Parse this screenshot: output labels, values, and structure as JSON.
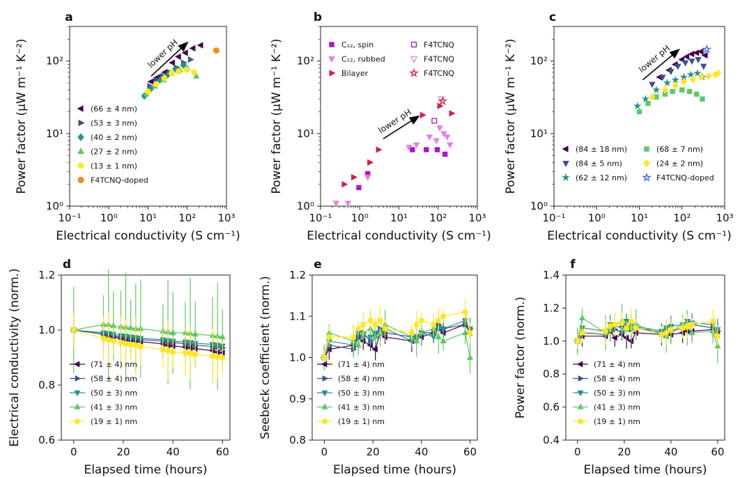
{
  "colors": {
    "purple": "#440154",
    "indigo": "#3b528b",
    "teal": "#21918c",
    "green": "#5ec962",
    "yellow": "#fde725",
    "orange": "#f28e1c",
    "magenta": "#b00fd0",
    "pink": "#e481e8",
    "crimson": "#d2204a",
    "blue_open": "#4169e1"
  },
  "chart_data": [
    {
      "id": "a",
      "panel_label": "a",
      "type": "scatter",
      "xlabel": "Electrical conductivity (S cm⁻¹)",
      "ylabel": "Power factor (μW m⁻¹ K⁻²)",
      "xscale": "log",
      "yscale": "log",
      "xlim": [
        0.1,
        1000
      ],
      "ylim": [
        1,
        300
      ],
      "xticks": [
        0.1,
        1,
        10,
        100,
        1000
      ],
      "xticklabels": [
        "10⁻¹",
        "10⁰",
        "10¹",
        "10²",
        "10³"
      ],
      "yticks": [
        1,
        10,
        100
      ],
      "yticklabels": [
        "10⁰",
        "10¹",
        "10²"
      ],
      "annotation": {
        "text": "lower pH",
        "from": [
          12,
          62
        ],
        "to": [
          95,
          175
        ]
      },
      "legend": "center-left",
      "series": [
        {
          "name": "(66 ± 4 nm)",
          "marker": "tri-left",
          "color": "#440154",
          "x": [
            12,
            18,
            27,
            42,
            60,
            90,
            140,
            220
          ],
          "y": [
            52,
            60,
            70,
            95,
            115,
            130,
            150,
            165
          ]
        },
        {
          "name": "(53 ± 3 nm)",
          "marker": "tri-right",
          "color": "#3b528b",
          "x": [
            11,
            16,
            24,
            35,
            52,
            80,
            120
          ],
          "y": [
            45,
            55,
            62,
            70,
            82,
            95,
            105
          ]
        },
        {
          "name": "(40 ± 2 nm)",
          "marker": "diamond",
          "color": "#21918c",
          "x": [
            8,
            12,
            20,
            32,
            50,
            80
          ],
          "y": [
            33,
            42,
            55,
            65,
            78,
            88
          ]
        },
        {
          "name": "(27 ± 2 nm)",
          "marker": "tri-up",
          "color": "#5ec962",
          "x": [
            9,
            15,
            25,
            40,
            65,
            100,
            170
          ],
          "y": [
            35,
            45,
            55,
            68,
            75,
            80,
            62
          ]
        },
        {
          "name": "(13 ± 1 nm)",
          "marker": "octagon",
          "color": "#fde725",
          "x": [
            10,
            16,
            26,
            40,
            60,
            95,
            150
          ],
          "y": [
            38,
            48,
            58,
            68,
            72,
            76,
            70
          ]
        },
        {
          "name": "F4TCNQ-doped",
          "marker": "circle",
          "color": "#f28e1c",
          "x": [
            550
          ],
          "y": [
            140
          ]
        }
      ]
    },
    {
      "id": "b",
      "panel_label": "b",
      "type": "scatter",
      "xlabel": "Electrical conductivity (S cm⁻¹)",
      "ylabel": "Power factor (μW m⁻¹ K⁻²)",
      "xscale": "log",
      "yscale": "log",
      "xlim": [
        0.1,
        1000
      ],
      "ylim": [
        1,
        300
      ],
      "xticks": [
        0.1,
        1,
        10,
        100,
        1000
      ],
      "xticklabels": [
        "10⁻¹",
        "10⁰",
        "10¹",
        "10²",
        "10³"
      ],
      "yticks": [
        1,
        10,
        100
      ],
      "yticklabels": [
        "10⁰",
        "10¹",
        "10²"
      ],
      "annotation": {
        "text": "lower pH",
        "from": [
          4,
          8.5
        ],
        "to": [
          30,
          17
        ]
      },
      "legend": "top",
      "series": [
        {
          "name": "C₁₂, spin",
          "marker": "square",
          "color": "#b00fd0",
          "x": [
            0.95,
            1.6,
            22,
            50,
            95,
            150
          ],
          "y": [
            1.8,
            2.8,
            6,
            6,
            6,
            5.2
          ]
        },
        {
          "name": "C₁₂, rubbed",
          "marker": "tri-down",
          "color": "#e481e8",
          "x": [
            0.25,
            0.5,
            1.6,
            18,
            28,
            60,
            90,
            110,
            140,
            170,
            200
          ],
          "y": [
            1.1,
            1.1,
            2.5,
            6.5,
            7,
            9,
            8,
            12,
            10,
            9,
            7
          ]
        },
        {
          "name": "Bilayer",
          "marker": "tri-right",
          "color": "#d2204a",
          "x": [
            0.4,
            0.7,
            1.8,
            3,
            40,
            110,
            220
          ],
          "y": [
            2.0,
            2.5,
            4,
            6,
            18,
            24,
            19
          ]
        },
        {
          "name": "F4TCNQ",
          "marker": "square-open",
          "color": "#b00fd0",
          "x": [
            80
          ],
          "y": [
            15
          ]
        },
        {
          "name": "F4TCNQ",
          "marker": "tri-down-open",
          "color": "#e481e8",
          "x": [
            120
          ],
          "y": [
            30
          ]
        },
        {
          "name": "F4TCNQ",
          "marker": "star-open",
          "color": "#d2204a",
          "x": [
            130
          ],
          "y": [
            28
          ]
        }
      ]
    },
    {
      "id": "c",
      "panel_label": "c",
      "type": "scatter",
      "xlabel": "Electrical conductivity (S cm⁻¹)",
      "ylabel": "Power factor (μW m⁻¹ K⁻²)",
      "xscale": "log",
      "yscale": "log",
      "xlim": [
        0.1,
        1000
      ],
      "ylim": [
        1,
        300
      ],
      "xticks": [
        0.1,
        1,
        10,
        100,
        1000
      ],
      "xticklabels": [
        "10⁻¹",
        "10⁰",
        "10¹",
        "10²",
        "10³"
      ],
      "yticks": [
        1,
        10,
        100
      ],
      "yticklabels": [
        "10⁰",
        "10¹",
        "10²"
      ],
      "annotation": {
        "text": "lower pH",
        "from": [
          12,
          55
        ],
        "to": [
          80,
          140
        ]
      },
      "legend": "bottom",
      "series": [
        {
          "name": "(84 ± 18 nm)",
          "marker": "tri-left",
          "color": "#440154",
          "x": [
            30,
            50,
            70,
            100,
            130,
            170,
            220,
            280,
            350
          ],
          "y": [
            60,
            75,
            90,
            105,
            115,
            125,
            130,
            135,
            120
          ]
        },
        {
          "name": "(84 ± 5 nm)",
          "marker": "tri-down",
          "color": "#3b528b",
          "x": [
            20,
            35,
            55,
            80,
            120,
            170,
            240,
            320
          ],
          "y": [
            48,
            60,
            72,
            85,
            95,
            100,
            105,
            85
          ]
        },
        {
          "name": "(62 ± 12 nm)",
          "marker": "star",
          "color": "#21918c",
          "x": [
            9,
            14,
            25,
            45,
            70,
            110,
            160,
            230,
            300
          ],
          "y": [
            24,
            30,
            40,
            50,
            55,
            60,
            65,
            68,
            60
          ]
        },
        {
          "name": "(68 ± 7 nm)",
          "marker": "square",
          "color": "#5ec962",
          "x": [
            10,
            16,
            25,
            40,
            60,
            100,
            150,
            220,
            300
          ],
          "y": [
            20,
            26,
            32,
            35,
            38,
            40,
            38,
            35,
            30
          ]
        },
        {
          "name": "(24 ± 2 nm)",
          "marker": "diamond",
          "color": "#fde725",
          "x": [
            20,
            40,
            70,
            110,
            180,
            280,
            420,
            600,
            700
          ],
          "y": [
            32,
            40,
            46,
            52,
            56,
            60,
            62,
            65,
            68
          ]
        },
        {
          "name": "F4TCNQ-doped",
          "marker": "star-open",
          "color": "#4169e1",
          "x": [
            380
          ],
          "y": [
            145
          ]
        }
      ]
    },
    {
      "id": "d",
      "panel_label": "d",
      "type": "line",
      "xlabel": "Elapsed time (hours)",
      "ylabel": "Electrical conductivity (norm.)",
      "xlim": [
        -5,
        63
      ],
      "ylim": [
        0.6,
        1.2
      ],
      "xticks": [
        0,
        20,
        40,
        60
      ],
      "yticks": [
        0.6,
        0.8,
        1.0,
        1.2
      ],
      "yticklabels": [
        "0.6",
        "0.8",
        "1.0",
        "1.2"
      ],
      "legend": "bottom-left",
      "x": [
        0,
        12,
        14,
        16,
        19,
        21,
        23,
        25,
        27,
        36,
        38,
        40,
        45,
        47,
        49,
        56,
        58,
        60
      ],
      "series": [
        {
          "name": "(71 ± 4) nm",
          "marker": "tri-left",
          "color": "#440154",
          "err": 0.03,
          "values": [
            1.0,
            0.985,
            0.98,
            0.975,
            0.97,
            0.965,
            0.962,
            0.96,
            0.958,
            0.95,
            0.945,
            0.942,
            0.938,
            0.935,
            0.933,
            0.925,
            0.92,
            0.918
          ]
        },
        {
          "name": "(58 ± 4) nm",
          "marker": "tri-right",
          "color": "#3b528b",
          "err": 0.03,
          "values": [
            1.0,
            0.985,
            0.98,
            0.978,
            0.975,
            0.972,
            0.97,
            0.968,
            0.965,
            0.96,
            0.957,
            0.955,
            0.95,
            0.948,
            0.945,
            0.94,
            0.938,
            0.935
          ]
        },
        {
          "name": "(50 ± 3) nm",
          "marker": "tri-down",
          "color": "#21918c",
          "err": 0.03,
          "values": [
            1.0,
            0.99,
            0.988,
            0.985,
            0.98,
            0.978,
            0.975,
            0.973,
            0.97,
            0.965,
            0.962,
            0.96,
            0.957,
            0.955,
            0.952,
            0.948,
            0.945,
            0.942
          ]
        },
        {
          "name": "(41 ± 3) nm",
          "marker": "tri-up",
          "color": "#5ec962",
          "err": 0.15,
          "values": [
            1.0,
            1.02,
            1.02,
            1.015,
            1.012,
            1.01,
            1.008,
            1.005,
            1.005,
            0.995,
            0.993,
            0.99,
            0.99,
            0.988,
            0.985,
            0.98,
            0.978,
            0.975
          ]
        },
        {
          "name": "(19 ± 1) nm",
          "marker": "square",
          "color": "#fde725",
          "err": 0.08,
          "values": [
            1.0,
            0.97,
            0.965,
            0.96,
            0.955,
            0.95,
            0.948,
            0.945,
            0.94,
            0.93,
            0.925,
            0.92,
            0.918,
            0.915,
            0.912,
            0.905,
            0.902,
            0.9
          ]
        }
      ]
    },
    {
      "id": "e",
      "panel_label": "e",
      "type": "line",
      "xlabel": "Elapsed time (hours)",
      "ylabel": "Seebeck coefficient (norm.)",
      "xlim": [
        -5,
        63
      ],
      "ylim": [
        0.8,
        1.2
      ],
      "xticks": [
        0,
        20,
        40,
        60
      ],
      "yticks": [
        0.8,
        0.9,
        1.0,
        1.1,
        1.2
      ],
      "yticklabels": [
        "0.8",
        "0.9",
        "1.0",
        "1.1",
        "1.2"
      ],
      "legend": "bottom-left",
      "x": [
        0,
        2,
        12,
        14,
        16,
        19,
        21,
        23,
        25,
        36,
        38,
        40,
        45,
        47,
        49,
        58,
        60
      ],
      "series": [
        {
          "name": "(71 ± 4) nm",
          "marker": "tri-left",
          "color": "#440154",
          "err": 0.02,
          "values": [
            1.0,
            1.02,
            1.03,
            1.05,
            1.04,
            1.03,
            1.02,
            1.06,
            1.05,
            1.04,
            1.05,
            1.05,
            1.06,
            1.07,
            1.06,
            1.08,
            1.06
          ]
        },
        {
          "name": "(58 ± 4) nm",
          "marker": "tri-right",
          "color": "#3b528b",
          "err": 0.02,
          "values": [
            1.0,
            1.03,
            1.02,
            1.05,
            1.06,
            1.04,
            1.05,
            1.07,
            1.06,
            1.05,
            1.05,
            1.06,
            1.06,
            1.08,
            1.07,
            1.08,
            1.07
          ]
        },
        {
          "name": "(50 ± 3) nm",
          "marker": "tri-down",
          "color": "#21918c",
          "err": 0.02,
          "values": [
            1.0,
            1.04,
            1.03,
            1.06,
            1.05,
            1.05,
            1.06,
            1.06,
            1.07,
            1.04,
            1.05,
            1.06,
            1.05,
            1.07,
            1.07,
            1.09,
            1.07
          ]
        },
        {
          "name": "(41 ± 3) nm",
          "marker": "tri-up",
          "color": "#5ec962",
          "err": 0.03,
          "values": [
            1.0,
            1.06,
            1.04,
            1.03,
            1.06,
            1.07,
            1.05,
            1.06,
            1.08,
            1.05,
            1.04,
            1.06,
            1.07,
            1.05,
            1.04,
            1.06,
            1.0
          ]
        },
        {
          "name": "(19 ± 1) nm",
          "marker": "square",
          "color": "#fde725",
          "err": 0.025,
          "values": [
            1.0,
            1.05,
            1.05,
            1.07,
            1.08,
            1.09,
            1.08,
            1.09,
            1.07,
            1.06,
            1.08,
            1.09,
            1.08,
            1.09,
            1.1,
            1.11,
            1.06
          ]
        }
      ]
    },
    {
      "id": "f",
      "panel_label": "f",
      "type": "line",
      "xlabel": "Elapsed time (hours)",
      "ylabel": "Power factor (norm.)",
      "xlim": [
        -5,
        63
      ],
      "ylim": [
        0.4,
        1.4
      ],
      "xticks": [
        0,
        20,
        40,
        60
      ],
      "yticks": [
        0.4,
        0.6,
        0.8,
        1.0,
        1.2,
        1.4
      ],
      "yticklabels": [
        "0.4",
        "0.6",
        "0.8",
        "1.0",
        "1.2",
        "1.4"
      ],
      "legend": "bottom-left",
      "x": [
        0,
        2,
        12,
        14,
        16,
        19,
        21,
        23,
        25,
        36,
        38,
        40,
        45,
        47,
        49,
        58,
        60
      ],
      "series": [
        {
          "name": "(71 ± 4) nm",
          "marker": "tri-left",
          "color": "#440154",
          "err": 0.05,
          "values": [
            1.0,
            1.03,
            1.03,
            1.06,
            1.02,
            1.04,
            1.02,
            1.0,
            1.05,
            1.04,
            1.03,
            1.04,
            1.05,
            1.06,
            1.06,
            1.07,
            1.05
          ]
        },
        {
          "name": "(58 ± 4) nm",
          "marker": "tri-right",
          "color": "#3b528b",
          "err": 0.05,
          "values": [
            1.0,
            1.05,
            1.04,
            1.08,
            1.07,
            1.05,
            1.09,
            1.07,
            1.08,
            1.05,
            1.06,
            1.06,
            1.08,
            1.09,
            1.1,
            1.08,
            1.06
          ]
        },
        {
          "name": "(50 ± 3) nm",
          "marker": "tri-down",
          "color": "#21918c",
          "err": 0.05,
          "values": [
            1.0,
            1.08,
            1.06,
            1.1,
            1.09,
            1.08,
            1.12,
            1.1,
            1.09,
            1.06,
            1.08,
            1.09,
            1.1,
            1.12,
            1.11,
            1.1,
            1.07
          ]
        },
        {
          "name": "(41 ± 3) nm",
          "marker": "tri-up",
          "color": "#5ec962",
          "err": 0.08,
          "values": [
            1.0,
            1.14,
            1.05,
            1.07,
            1.1,
            1.12,
            1.07,
            1.08,
            1.1,
            1.04,
            1.03,
            1.06,
            1.1,
            1.08,
            1.05,
            1.06,
            0.97
          ]
        },
        {
          "name": "(19 ± 1) nm",
          "marker": "square",
          "color": "#fde725",
          "err": 0.06,
          "values": [
            1.0,
            1.05,
            1.06,
            1.09,
            1.1,
            1.11,
            1.08,
            1.12,
            1.08,
            1.04,
            1.05,
            1.07,
            1.08,
            1.09,
            1.1,
            1.12,
            1.03
          ]
        }
      ]
    }
  ]
}
